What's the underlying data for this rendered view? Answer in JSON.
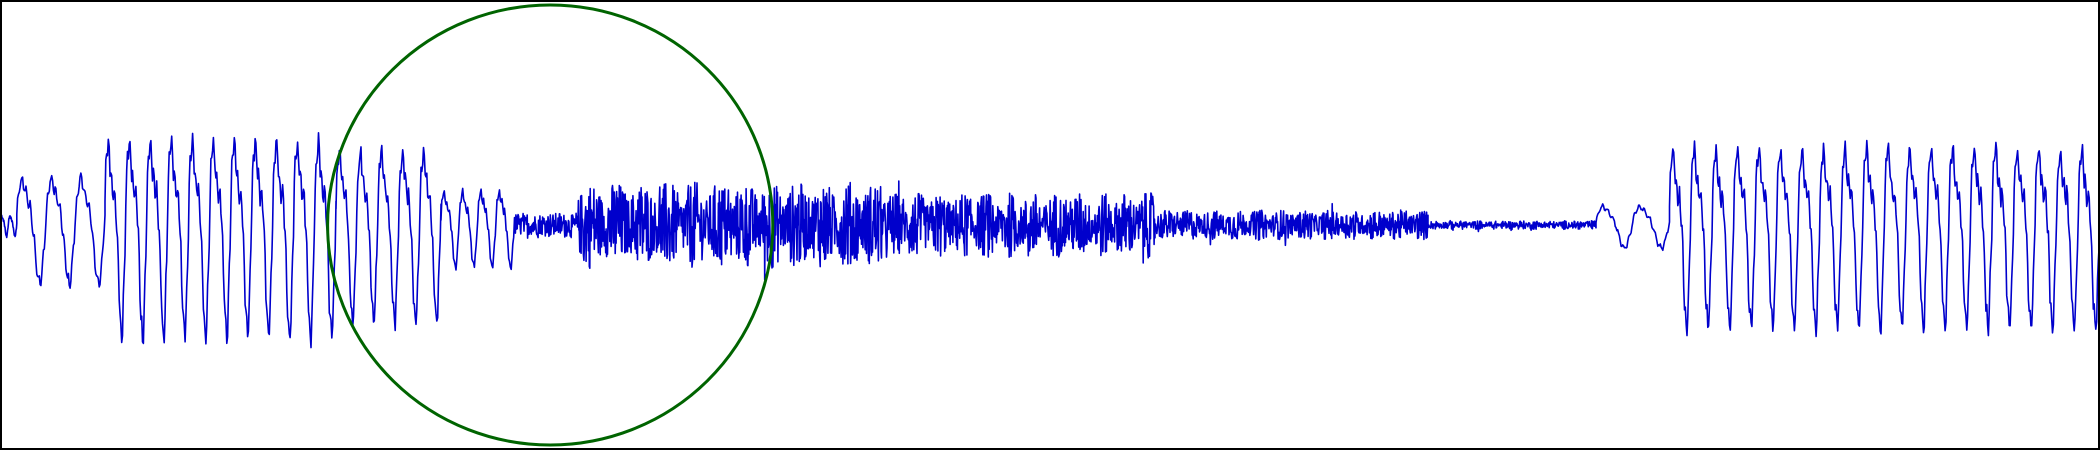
{
  "colors": {
    "background": "#ffffff",
    "frame": "#000000",
    "waveform": "#0000cc",
    "highlight_circle": "#006400"
  },
  "chart_data": {
    "type": "line",
    "title": "",
    "xlabel": "",
    "ylabel": "",
    "axes_visible": false,
    "grid": false,
    "legend": "none",
    "xlim": [
      0,
      1
    ],
    "ylim": [
      -1,
      1
    ],
    "series": [
      {
        "style": "waveform",
        "segments": [
          {
            "kind": "oscillation",
            "x_start": 0.0,
            "x_end": 0.008,
            "amplitude": 0.05,
            "cycles": 2,
            "harmonic": 0.25
          },
          {
            "kind": "oscillation",
            "x_start": 0.008,
            "x_end": 0.05,
            "amplitude": 0.25,
            "cycles": 3,
            "harmonic": 0.25
          },
          {
            "kind": "oscillation",
            "x_start": 0.05,
            "x_end": 0.16,
            "amplitude": 0.46,
            "cycles": 11,
            "harmonic": 0.4
          },
          {
            "kind": "oscillation",
            "x_start": 0.16,
            "x_end": 0.21,
            "amplitude": 0.4,
            "cycles": 5,
            "harmonic": 0.35
          },
          {
            "kind": "oscillation",
            "x_start": 0.21,
            "x_end": 0.245,
            "amplitude": 0.18,
            "cycles": 4,
            "harmonic": 0.3
          },
          {
            "kind": "noise",
            "x_start": 0.245,
            "x_end": 0.275,
            "amplitude": 0.06
          },
          {
            "kind": "noise",
            "x_start": 0.275,
            "x_end": 0.42,
            "amplitude": 0.2
          },
          {
            "kind": "noise",
            "x_start": 0.42,
            "x_end": 0.55,
            "amplitude": 0.15
          },
          {
            "kind": "noise",
            "x_start": 0.55,
            "x_end": 0.68,
            "amplitude": 0.07
          },
          {
            "kind": "noise",
            "x_start": 0.68,
            "x_end": 0.76,
            "amplitude": 0.02
          },
          {
            "kind": "oscillation",
            "x_start": 0.76,
            "x_end": 0.795,
            "amplitude": 0.1,
            "cycles": 2,
            "harmonic": 0.2
          },
          {
            "kind": "oscillation",
            "x_start": 0.795,
            "x_end": 1.0,
            "amplitude": 0.42,
            "cycles": 20,
            "harmonic": 0.4
          }
        ]
      }
    ],
    "annotations": [
      {
        "kind": "circle",
        "center_x": 0.262,
        "center_y": 0.0,
        "radius_y": 1.0,
        "radius_x": 0.106
      }
    ]
  }
}
